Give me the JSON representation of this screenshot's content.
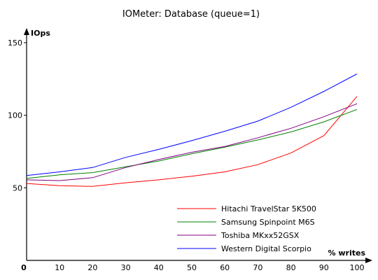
{
  "chart_data": {
    "type": "line",
    "title": "IOMeter: Database (queue=1)",
    "xlabel": "% writes",
    "ylabel": "IOps",
    "xlim": [
      0,
      100
    ],
    "ylim": [
      0,
      150
    ],
    "x_ticks": [
      0,
      10,
      20,
      30,
      40,
      50,
      60,
      70,
      80,
      90,
      100
    ],
    "y_ticks": [
      50,
      100,
      150
    ],
    "grid": false,
    "legend_position": "bottom-right",
    "x": [
      0,
      10,
      20,
      30,
      40,
      50,
      60,
      70,
      80,
      90,
      100
    ],
    "series": [
      {
        "name": "Hitachi TravelStar 5K500",
        "color": "#ff0000",
        "values": [
          53,
          51.5,
          51,
          53.5,
          55.5,
          58,
          61,
          66,
          74,
          86,
          113
        ]
      },
      {
        "name": "Samsung Spinpoint M6S",
        "color": "#008000",
        "values": [
          56.5,
          59,
          60.5,
          64.5,
          68.5,
          73.5,
          78,
          83,
          88.5,
          95.5,
          104
        ]
      },
      {
        "name": "Toshiba MKxx52GSX",
        "color": "#800080",
        "values": [
          55.5,
          55,
          57,
          64,
          69.5,
          74.5,
          78.5,
          84.5,
          91,
          99,
          108
        ]
      },
      {
        "name": "Western Digital Scorpio",
        "color": "#0000ff",
        "values": [
          58.5,
          61,
          64,
          71,
          76.5,
          82.5,
          89,
          96,
          105.5,
          116.5,
          128.5
        ]
      }
    ]
  }
}
